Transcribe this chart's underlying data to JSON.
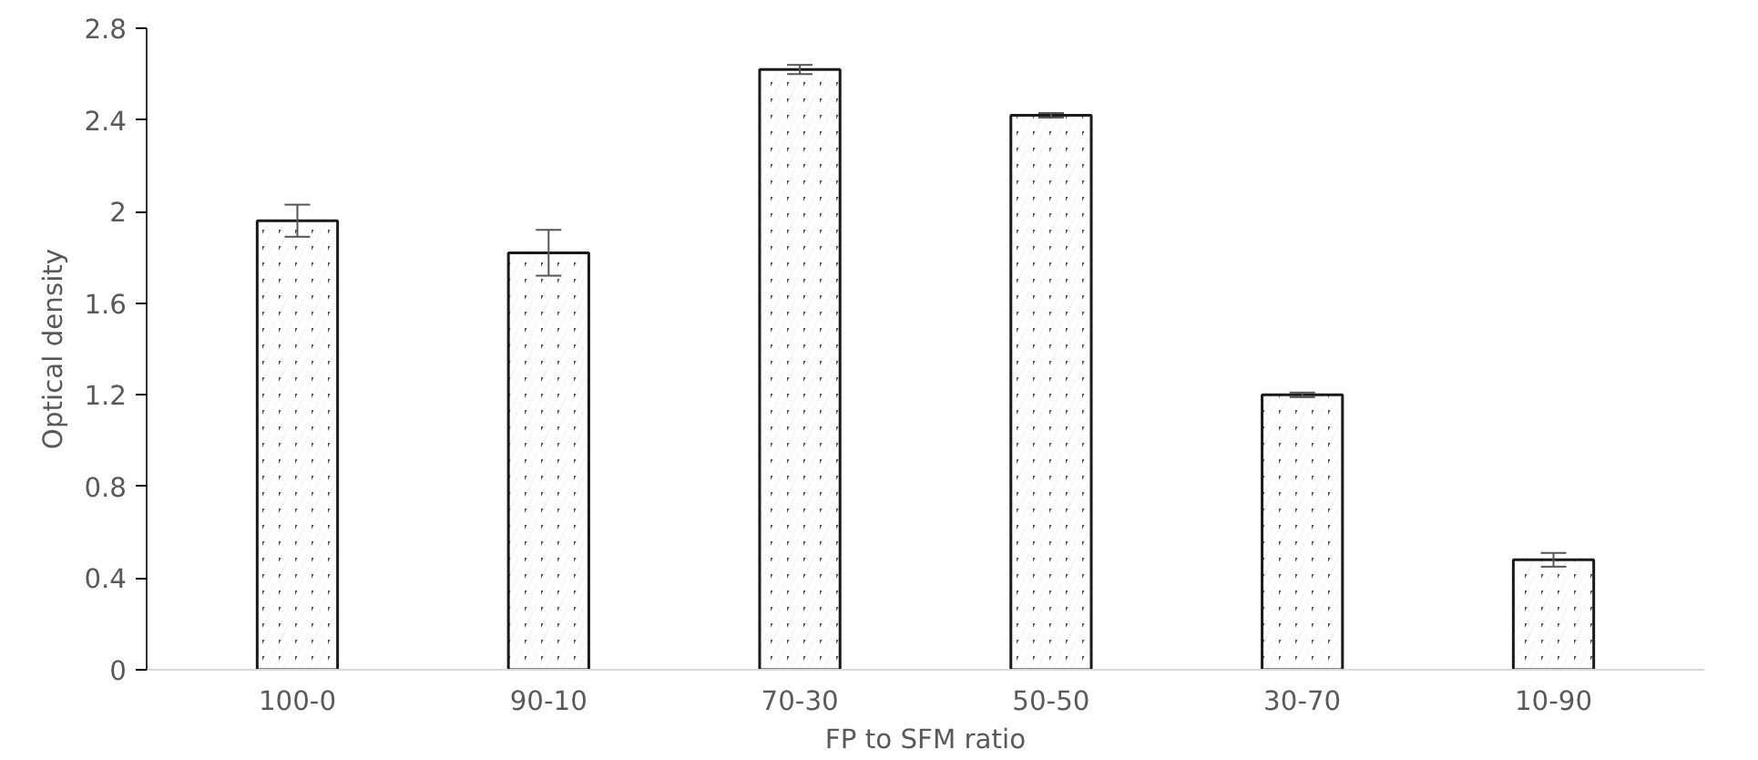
{
  "chart_data": {
    "type": "bar",
    "xlabel": "FP to SFM ratio",
    "ylabel": "Optical density",
    "categories": [
      "100-0",
      "90-10",
      "70-30",
      "50-50",
      "30-70",
      "10-90"
    ],
    "values": [
      1.96,
      1.82,
      2.62,
      2.42,
      1.2,
      0.48
    ],
    "errors": [
      0.07,
      0.1,
      0.02,
      0.01,
      0.01,
      0.03
    ],
    "color": "#44546a",
    "ylim": [
      0,
      2.8
    ],
    "yticks": [
      0,
      0.4,
      0.8,
      1.2,
      1.6,
      2,
      2.4,
      2.8
    ],
    "grid": false
  }
}
